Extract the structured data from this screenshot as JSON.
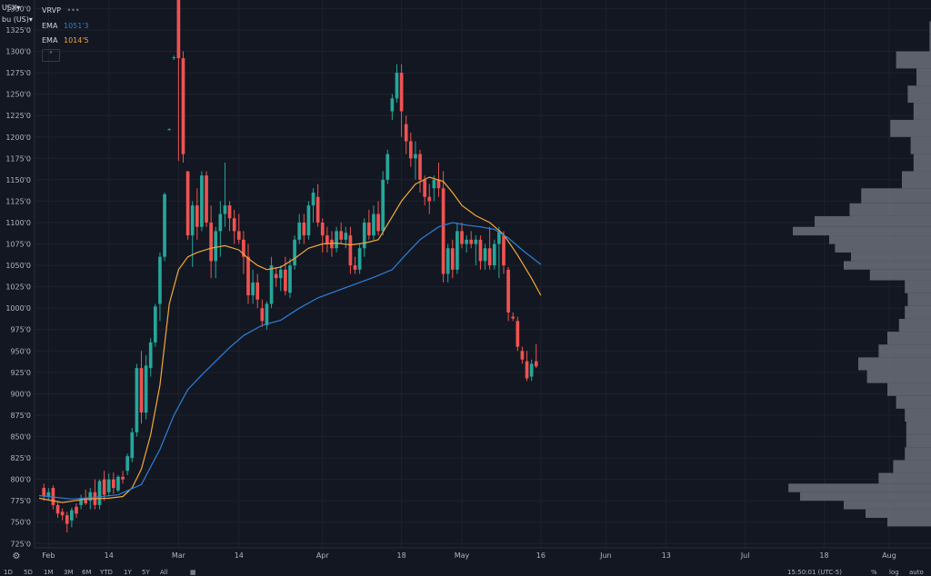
{
  "header": {
    "symbol": "USX",
    "units": "bu (US)",
    "vrvp_label": "VRVP",
    "vrvp_dots": "•••",
    "ema1_label": "EMA",
    "ema1_value": "1051'3",
    "ema2_label": "EMA",
    "ema2_value": "1014'5",
    "collapse_icon": "˄"
  },
  "colors": {
    "up": "#26a69a",
    "down": "#ef5350",
    "ema_fast": "#f0a93b",
    "ema_slow": "#2f7fd6",
    "volume_profile": "#6a6e78",
    "grid": "#1e222d",
    "background": "#131722"
  },
  "footer": {
    "timeframes": [
      "1D",
      "5D",
      "1M",
      "3M",
      "6M",
      "YTD",
      "1Y",
      "5Y",
      "All"
    ],
    "clock": "15:50:01 (UTC-5)",
    "pct": "%",
    "log": "log",
    "auto": "auto"
  },
  "chart_data": {
    "type": "candlestick",
    "y_axis_ticks": [
      "1350'0",
      "1325'0",
      "1300'0",
      "1275'0",
      "1250'0",
      "1225'0",
      "1200'0",
      "1175'0",
      "1150'0",
      "1125'0",
      "1100'0",
      "1075'0",
      "1050'0",
      "1025'0",
      "1000'0",
      "975'0",
      "950'0",
      "925'0",
      "900'0",
      "875'0",
      "850'0",
      "825'0",
      "800'0",
      "775'0",
      "750'0",
      "725'0"
    ],
    "y_axis_values": [
      1350,
      1325,
      1300,
      1275,
      1250,
      1225,
      1200,
      1175,
      1150,
      1125,
      1100,
      1075,
      1050,
      1025,
      1000,
      975,
      950,
      925,
      900,
      875,
      850,
      825,
      800,
      775,
      750,
      725
    ],
    "ylim": [
      720,
      1360
    ],
    "x_axis_ticks": [
      "Feb",
      "14",
      "Mar",
      "14",
      "Apr",
      "18",
      "May",
      "16",
      "Jun",
      "13",
      "Jul",
      "18",
      "Aug"
    ],
    "x_axis_tick_days": [
      0,
      13,
      28,
      41,
      59,
      76,
      89,
      106,
      120,
      133,
      150,
      167,
      181
    ],
    "xlim": [
      -3,
      190
    ],
    "candles": [
      {
        "d": -1,
        "o": 790,
        "h": 795,
        "l": 775,
        "c": 780
      },
      {
        "d": 0,
        "o": 780,
        "h": 790,
        "l": 775,
        "c": 785
      },
      {
        "d": 1,
        "o": 790,
        "h": 793,
        "l": 765,
        "c": 770
      },
      {
        "d": 2,
        "o": 770,
        "h": 773,
        "l": 755,
        "c": 760
      },
      {
        "d": 3,
        "o": 762,
        "h": 766,
        "l": 752,
        "c": 758
      },
      {
        "d": 4,
        "o": 758,
        "h": 762,
        "l": 738,
        "c": 748
      },
      {
        "d": 5,
        "o": 752,
        "h": 767,
        "l": 744,
        "c": 764
      },
      {
        "d": 6,
        "o": 768,
        "h": 772,
        "l": 755,
        "c": 760
      },
      {
        "d": 7,
        "o": 770,
        "h": 782,
        "l": 765,
        "c": 778
      },
      {
        "d": 8,
        "o": 778,
        "h": 788,
        "l": 770,
        "c": 772
      },
      {
        "d": 9,
        "o": 775,
        "h": 790,
        "l": 765,
        "c": 785
      },
      {
        "d": 10,
        "o": 785,
        "h": 800,
        "l": 765,
        "c": 770
      },
      {
        "d": 11,
        "o": 770,
        "h": 800,
        "l": 765,
        "c": 798
      },
      {
        "d": 12,
        "o": 800,
        "h": 810,
        "l": 775,
        "c": 782
      },
      {
        "d": 13,
        "o": 785,
        "h": 807,
        "l": 780,
        "c": 800
      },
      {
        "d": 14,
        "o": 800,
        "h": 808,
        "l": 783,
        "c": 790
      },
      {
        "d": 15,
        "o": 787,
        "h": 805,
        "l": 785,
        "c": 803
      },
      {
        "d": 16,
        "o": 803,
        "h": 810,
        "l": 795,
        "c": 800
      },
      {
        "d": 17,
        "o": 810,
        "h": 830,
        "l": 805,
        "c": 827
      },
      {
        "d": 18,
        "o": 825,
        "h": 860,
        "l": 820,
        "c": 855
      },
      {
        "d": 19,
        "o": 855,
        "h": 935,
        "l": 850,
        "c": 930
      },
      {
        "d": 20,
        "o": 930,
        "h": 950,
        "l": 865,
        "c": 878
      },
      {
        "d": 21,
        "o": 878,
        "h": 945,
        "l": 870,
        "c": 933
      },
      {
        "d": 22,
        "o": 930,
        "h": 965,
        "l": 920,
        "c": 960
      },
      {
        "d": 23,
        "o": 960,
        "h": 1005,
        "l": 955,
        "c": 1002
      },
      {
        "d": 24,
        "o": 1005,
        "h": 1065,
        "l": 985,
        "c": 1060
      },
      {
        "d": 25,
        "o": 1060,
        "h": 1135,
        "l": 1055,
        "c": 1133
      },
      {
        "d": 26,
        "o": 1208,
        "h": 1210,
        "l": 1208,
        "c": 1209
      },
      {
        "d": 27,
        "o": 1293,
        "h": 1295,
        "l": 1290,
        "c": 1293
      },
      {
        "d": 28,
        "o": 1360,
        "h": 1360,
        "l": 1172,
        "c": 1292
      },
      {
        "d": 29,
        "o": 1292,
        "h": 1300,
        "l": 1170,
        "c": 1180
      },
      {
        "d": 30,
        "o": 1160,
        "h": 1160,
        "l": 1080,
        "c": 1085
      },
      {
        "d": 31,
        "o": 1085,
        "h": 1125,
        "l": 1048,
        "c": 1120
      },
      {
        "d": 32,
        "o": 1120,
        "h": 1140,
        "l": 1080,
        "c": 1095
      },
      {
        "d": 33,
        "o": 1095,
        "h": 1160,
        "l": 1090,
        "c": 1155
      },
      {
        "d": 34,
        "o": 1155,
        "h": 1160,
        "l": 1095,
        "c": 1100
      },
      {
        "d": 35,
        "o": 1100,
        "h": 1120,
        "l": 1035,
        "c": 1055
      },
      {
        "d": 36,
        "o": 1055,
        "h": 1095,
        "l": 1035,
        "c": 1090
      },
      {
        "d": 37,
        "o": 1090,
        "h": 1125,
        "l": 1060,
        "c": 1110
      },
      {
        "d": 38,
        "o": 1110,
        "h": 1170,
        "l": 1095,
        "c": 1120
      },
      {
        "d": 39,
        "o": 1120,
        "h": 1125,
        "l": 1090,
        "c": 1105
      },
      {
        "d": 40,
        "o": 1105,
        "h": 1115,
        "l": 1075,
        "c": 1090
      },
      {
        "d": 41,
        "o": 1090,
        "h": 1110,
        "l": 1075,
        "c": 1080
      },
      {
        "d": 42,
        "o": 1080,
        "h": 1090,
        "l": 1040,
        "c": 1060
      },
      {
        "d": 43,
        "o": 1060,
        "h": 1075,
        "l": 1005,
        "c": 1015
      },
      {
        "d": 44,
        "o": 1015,
        "h": 1045,
        "l": 1005,
        "c": 1030
      },
      {
        "d": 45,
        "o": 1030,
        "h": 1040,
        "l": 1000,
        "c": 1010
      },
      {
        "d": 46,
        "o": 1000,
        "h": 1010,
        "l": 978,
        "c": 985
      },
      {
        "d": 47,
        "o": 980,
        "h": 1008,
        "l": 975,
        "c": 1005
      },
      {
        "d": 48,
        "o": 1005,
        "h": 1060,
        "l": 1000,
        "c": 1050
      },
      {
        "d": 49,
        "o": 1040,
        "h": 1048,
        "l": 1025,
        "c": 1035
      },
      {
        "d": 50,
        "o": 1035,
        "h": 1050,
        "l": 1020,
        "c": 1045
      },
      {
        "d": 51,
        "o": 1045,
        "h": 1060,
        "l": 1015,
        "c": 1020
      },
      {
        "d": 52,
        "o": 1018,
        "h": 1058,
        "l": 1012,
        "c": 1050
      },
      {
        "d": 53,
        "o": 1050,
        "h": 1085,
        "l": 1045,
        "c": 1080
      },
      {
        "d": 54,
        "o": 1080,
        "h": 1110,
        "l": 1075,
        "c": 1100
      },
      {
        "d": 55,
        "o": 1100,
        "h": 1110,
        "l": 1075,
        "c": 1085
      },
      {
        "d": 56,
        "o": 1085,
        "h": 1125,
        "l": 1080,
        "c": 1120
      },
      {
        "d": 57,
        "o": 1120,
        "h": 1140,
        "l": 1100,
        "c": 1135
      },
      {
        "d": 58,
        "o": 1130,
        "h": 1145,
        "l": 1095,
        "c": 1100
      },
      {
        "d": 59,
        "o": 1100,
        "h": 1105,
        "l": 1065,
        "c": 1085
      },
      {
        "d": 60,
        "o": 1085,
        "h": 1095,
        "l": 1065,
        "c": 1075
      },
      {
        "d": 61,
        "o": 1080,
        "h": 1090,
        "l": 1060,
        "c": 1070
      },
      {
        "d": 62,
        "o": 1070,
        "h": 1095,
        "l": 1065,
        "c": 1090
      },
      {
        "d": 63,
        "o": 1090,
        "h": 1100,
        "l": 1075,
        "c": 1080
      },
      {
        "d": 64,
        "o": 1080,
        "h": 1095,
        "l": 1070,
        "c": 1088
      },
      {
        "d": 65,
        "o": 1085,
        "h": 1095,
        "l": 1040,
        "c": 1050
      },
      {
        "d": 66,
        "o": 1050,
        "h": 1060,
        "l": 1040,
        "c": 1045
      },
      {
        "d": 67,
        "o": 1045,
        "h": 1075,
        "l": 1040,
        "c": 1070
      },
      {
        "d": 68,
        "o": 1070,
        "h": 1105,
        "l": 1060,
        "c": 1100
      },
      {
        "d": 69,
        "o": 1100,
        "h": 1115,
        "l": 1080,
        "c": 1085
      },
      {
        "d": 70,
        "o": 1085,
        "h": 1120,
        "l": 1080,
        "c": 1110
      },
      {
        "d": 71,
        "o": 1110,
        "h": 1125,
        "l": 1085,
        "c": 1090
      },
      {
        "d": 72,
        "o": 1090,
        "h": 1160,
        "l": 1085,
        "c": 1150
      },
      {
        "d": 73,
        "o": 1150,
        "h": 1185,
        "l": 1145,
        "c": 1180
      },
      {
        "d": 74,
        "o": 1230,
        "h": 1250,
        "l": 1220,
        "c": 1245
      },
      {
        "d": 75,
        "o": 1245,
        "h": 1285,
        "l": 1240,
        "c": 1275
      },
      {
        "d": 76,
        "o": 1275,
        "h": 1285,
        "l": 1200,
        "c": 1230
      },
      {
        "d": 77,
        "o": 1215,
        "h": 1225,
        "l": 1180,
        "c": 1195
      },
      {
        "d": 78,
        "o": 1195,
        "h": 1205,
        "l": 1165,
        "c": 1175
      },
      {
        "d": 79,
        "o": 1175,
        "h": 1195,
        "l": 1150,
        "c": 1180
      },
      {
        "d": 80,
        "o": 1180,
        "h": 1185,
        "l": 1135,
        "c": 1150
      },
      {
        "d": 81,
        "o": 1150,
        "h": 1155,
        "l": 1120,
        "c": 1130
      },
      {
        "d": 82,
        "o": 1130,
        "h": 1145,
        "l": 1110,
        "c": 1125
      },
      {
        "d": 83,
        "o": 1140,
        "h": 1155,
        "l": 1125,
        "c": 1150
      },
      {
        "d": 84,
        "o": 1150,
        "h": 1170,
        "l": 1130,
        "c": 1140
      },
      {
        "d": 85,
        "o": 1140,
        "h": 1160,
        "l": 1030,
        "c": 1040
      },
      {
        "d": 86,
        "o": 1040,
        "h": 1075,
        "l": 1030,
        "c": 1070
      },
      {
        "d": 87,
        "o": 1070,
        "h": 1080,
        "l": 1035,
        "c": 1045
      },
      {
        "d": 88,
        "o": 1045,
        "h": 1100,
        "l": 1040,
        "c": 1090
      },
      {
        "d": 89,
        "o": 1090,
        "h": 1100,
        "l": 1070,
        "c": 1075
      },
      {
        "d": 90,
        "o": 1075,
        "h": 1085,
        "l": 1065,
        "c": 1080
      },
      {
        "d": 91,
        "o": 1080,
        "h": 1090,
        "l": 1070,
        "c": 1075
      },
      {
        "d": 92,
        "o": 1075,
        "h": 1085,
        "l": 1050,
        "c": 1080
      },
      {
        "d": 93,
        "o": 1080,
        "h": 1085,
        "l": 1045,
        "c": 1055
      },
      {
        "d": 94,
        "o": 1055,
        "h": 1075,
        "l": 1045,
        "c": 1070
      },
      {
        "d": 95,
        "o": 1070,
        "h": 1095,
        "l": 1045,
        "c": 1050
      },
      {
        "d": 96,
        "o": 1050,
        "h": 1080,
        "l": 1045,
        "c": 1075
      },
      {
        "d": 97,
        "o": 1075,
        "h": 1095,
        "l": 1035,
        "c": 1090
      },
      {
        "d": 98,
        "o": 1085,
        "h": 1090,
        "l": 1040,
        "c": 1050
      },
      {
        "d": 99,
        "o": 1045,
        "h": 1048,
        "l": 985,
        "c": 995
      },
      {
        "d": 100,
        "o": 990,
        "h": 995,
        "l": 985,
        "c": 988
      },
      {
        "d": 101,
        "o": 985,
        "h": 990,
        "l": 950,
        "c": 955
      },
      {
        "d": 102,
        "o": 950,
        "h": 955,
        "l": 935,
        "c": 940
      },
      {
        "d": 103,
        "o": 938,
        "h": 950,
        "l": 915,
        "c": 918
      },
      {
        "d": 104,
        "o": 920,
        "h": 940,
        "l": 915,
        "c": 935
      },
      {
        "d": 105,
        "o": 938,
        "h": 958,
        "l": 930,
        "c": 932
      }
    ],
    "series": [
      {
        "name": "EMA",
        "value_label": "1014'5",
        "color": "#f0a93b",
        "points": [
          [
            -2,
            778
          ],
          [
            3,
            773
          ],
          [
            8,
            777
          ],
          [
            13,
            778
          ],
          [
            16,
            780
          ],
          [
            18,
            790
          ],
          [
            20,
            812
          ],
          [
            22,
            852
          ],
          [
            24,
            910
          ],
          [
            26,
            1005
          ],
          [
            28,
            1045
          ],
          [
            30,
            1060
          ],
          [
            32,
            1065
          ],
          [
            35,
            1070
          ],
          [
            38,
            1073
          ],
          [
            41,
            1068
          ],
          [
            43,
            1058
          ],
          [
            45,
            1050
          ],
          [
            47,
            1045
          ],
          [
            50,
            1048
          ],
          [
            53,
            1058
          ],
          [
            56,
            1070
          ],
          [
            59,
            1075
          ],
          [
            62,
            1076
          ],
          [
            65,
            1074
          ],
          [
            68,
            1076
          ],
          [
            71,
            1080
          ],
          [
            73,
            1098
          ],
          [
            76,
            1125
          ],
          [
            79,
            1145
          ],
          [
            82,
            1153
          ],
          [
            85,
            1148
          ],
          [
            87,
            1135
          ],
          [
            89,
            1120
          ],
          [
            92,
            1108
          ],
          [
            95,
            1100
          ],
          [
            98,
            1086
          ],
          [
            101,
            1062
          ],
          [
            104,
            1035
          ],
          [
            106,
            1015
          ]
        ]
      },
      {
        "name": "EMA",
        "value_label": "1051'3",
        "color": "#2f7fd6",
        "points": [
          [
            -2,
            781
          ],
          [
            5,
            777
          ],
          [
            10,
            779
          ],
          [
            15,
            782
          ],
          [
            20,
            794
          ],
          [
            24,
            835
          ],
          [
            27,
            875
          ],
          [
            30,
            905
          ],
          [
            33,
            922
          ],
          [
            36,
            938
          ],
          [
            39,
            954
          ],
          [
            42,
            968
          ],
          [
            46,
            980
          ],
          [
            50,
            986
          ],
          [
            54,
            1000
          ],
          [
            58,
            1012
          ],
          [
            62,
            1020
          ],
          [
            66,
            1028
          ],
          [
            70,
            1036
          ],
          [
            74,
            1045
          ],
          [
            77,
            1063
          ],
          [
            80,
            1080
          ],
          [
            84,
            1095
          ],
          [
            87,
            1100
          ],
          [
            90,
            1097
          ],
          [
            93,
            1095
          ],
          [
            96,
            1092
          ],
          [
            99,
            1082
          ],
          [
            102,
            1068
          ],
          [
            106,
            1051
          ]
        ]
      }
    ],
    "volume_profile": {
      "price_levels": [
        1330,
        1310,
        1290,
        1270,
        1250,
        1230,
        1210,
        1190,
        1170,
        1150,
        1130,
        1115,
        1100,
        1090,
        1080,
        1070,
        1060,
        1050,
        1040,
        1025,
        1010,
        995,
        980,
        965,
        950,
        935,
        920,
        905,
        890,
        875,
        860,
        845,
        830,
        815,
        800,
        790,
        780,
        770,
        760,
        750
      ],
      "volume": [
        0.01,
        0.01,
        0.24,
        0.1,
        0.16,
        0.12,
        0.28,
        0.14,
        0.12,
        0.2,
        0.48,
        0.56,
        0.8,
        0.95,
        0.7,
        0.66,
        0.55,
        0.6,
        0.42,
        0.18,
        0.16,
        0.18,
        0.22,
        0.3,
        0.36,
        0.5,
        0.44,
        0.3,
        0.24,
        0.18,
        0.17,
        0.17,
        0.18,
        0.26,
        0.36,
        0.98,
        0.9,
        0.6,
        0.45,
        0.3
      ]
    }
  }
}
